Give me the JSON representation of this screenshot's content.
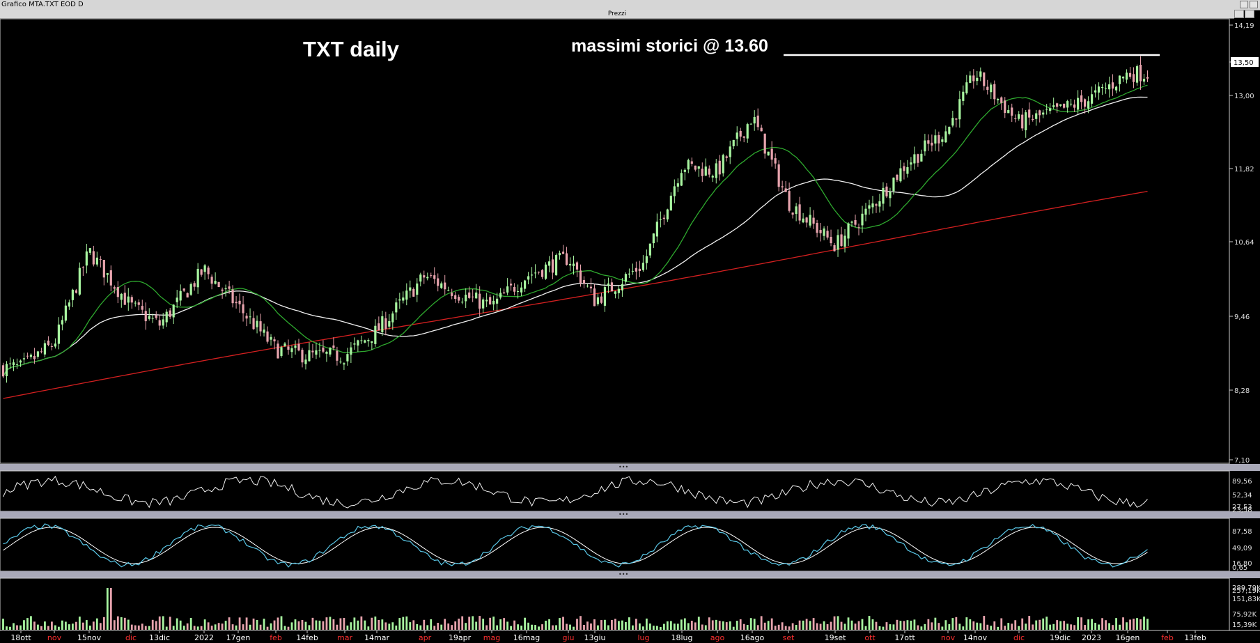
{
  "window": {
    "title": "Grafico MTA.TXT EOD D",
    "panel_title": "Prezzi"
  },
  "annotations": {
    "title": "TXT daily",
    "ath_label": "massimi storici @ 13.60"
  },
  "colors": {
    "background": "#000000",
    "up_candle": "#a8f5a0",
    "down_candle": "#e8a4ae",
    "ma_short": "#2ea82e",
    "ma_mid": "#f0f0f0",
    "ma_long": "#d42020",
    "stoch_k": "#5ac8e8",
    "stoch_d": "#ffffff",
    "axis_text": "#dcdcdc"
  },
  "chart_data": {
    "type": "candlestick",
    "price_axis": {
      "ticks": [
        "14,19",
        "13,50",
        "13,00",
        "11,82",
        "10,64",
        "9,46",
        "8,28",
        "7,10"
      ],
      "range": [
        7.1,
        14.19
      ],
      "last_price_label": "13,50"
    },
    "x_axis": {
      "labels": [
        {
          "text": "18ott",
          "color": "#ffffff"
        },
        {
          "text": "nov",
          "color": "#ff3030"
        },
        {
          "text": "15nov",
          "color": "#ffffff"
        },
        {
          "text": "dic",
          "color": "#ff3030"
        },
        {
          "text": "13dic",
          "color": "#ffffff"
        },
        {
          "text": "2022",
          "color": "#ffffff"
        },
        {
          "text": "17gen",
          "color": "#ffffff"
        },
        {
          "text": "feb",
          "color": "#ff3030"
        },
        {
          "text": "14feb",
          "color": "#ffffff"
        },
        {
          "text": "mar",
          "color": "#ff3030"
        },
        {
          "text": "14mar",
          "color": "#ffffff"
        },
        {
          "text": "apr",
          "color": "#ff3030"
        },
        {
          "text": "19apr",
          "color": "#ffffff"
        },
        {
          "text": "mag",
          "color": "#ff3030"
        },
        {
          "text": "16mag",
          "color": "#ffffff"
        },
        {
          "text": "giu",
          "color": "#ff3030"
        },
        {
          "text": "13giu",
          "color": "#ffffff"
        },
        {
          "text": "lug",
          "color": "#ff3030"
        },
        {
          "text": "18lug",
          "color": "#ffffff"
        },
        {
          "text": "ago",
          "color": "#ff3030"
        },
        {
          "text": "16ago",
          "color": "#ffffff"
        },
        {
          "text": "set",
          "color": "#ff3030"
        },
        {
          "text": "19set",
          "color": "#ffffff"
        },
        {
          "text": "ott",
          "color": "#ff3030"
        },
        {
          "text": "17ott",
          "color": "#ffffff"
        },
        {
          "text": "nov",
          "color": "#ff3030"
        },
        {
          "text": "14nov",
          "color": "#ffffff"
        },
        {
          "text": "dic",
          "color": "#ff3030"
        },
        {
          "text": "19dic",
          "color": "#ffffff"
        },
        {
          "text": "2023",
          "color": "#ffffff"
        },
        {
          "text": "16gen",
          "color": "#ffffff"
        },
        {
          "text": "feb",
          "color": "#ff3030"
        },
        {
          "text": "13feb",
          "color": "#ffffff"
        }
      ]
    },
    "ath_level": 13.6,
    "close_path": [
      {
        "x": "18ott",
        "y": 8.6
      },
      {
        "x": "nov",
        "y": 9.0
      },
      {
        "x": "15nov",
        "y": 10.5
      },
      {
        "x": "dic",
        "y": 9.6
      },
      {
        "x": "13dic",
        "y": 9.3
      },
      {
        "x": "2022",
        "y": 10.2
      },
      {
        "x": "17gen",
        "y": 9.6
      },
      {
        "x": "feb",
        "y": 8.9
      },
      {
        "x": "14feb",
        "y": 8.8
      },
      {
        "x": "mar",
        "y": 8.8
      },
      {
        "x": "14mar",
        "y": 9.2
      },
      {
        "x": "apr",
        "y": 10.1
      },
      {
        "x": "19apr",
        "y": 9.8
      },
      {
        "x": "mag",
        "y": 9.6
      },
      {
        "x": "16mag",
        "y": 10.1
      },
      {
        "x": "giu",
        "y": 10.4
      },
      {
        "x": "13giu",
        "y": 9.7
      },
      {
        "x": "lug",
        "y": 10.3
      },
      {
        "x": "18lug",
        "y": 11.9
      },
      {
        "x": "ago",
        "y": 11.8
      },
      {
        "x": "16ago",
        "y": 12.7
      },
      {
        "x": "set",
        "y": 11.3
      },
      {
        "x": "19set",
        "y": 10.6
      },
      {
        "x": "ott",
        "y": 11.2
      },
      {
        "x": "17ott",
        "y": 11.9
      },
      {
        "x": "nov",
        "y": 12.5
      },
      {
        "x": "14nov",
        "y": 13.4
      },
      {
        "x": "dic",
        "y": 12.6
      },
      {
        "x": "19dic",
        "y": 12.8
      },
      {
        "x": "2023",
        "y": 13.0
      },
      {
        "x": "16gen",
        "y": 13.4
      }
    ],
    "indicators": {
      "oscillator_1": {
        "ticks": [
          "89,56",
          "52,34",
          "27,53",
          "23,58"
        ]
      },
      "oscillator_2": {
        "ticks": [
          "87,58",
          "49,09",
          "16,80",
          "0,65"
        ]
      },
      "volume": {
        "ticks": [
          "289,79K",
          "257,19K",
          "151,83K",
          "75,92K",
          "15,39K"
        ]
      }
    }
  }
}
